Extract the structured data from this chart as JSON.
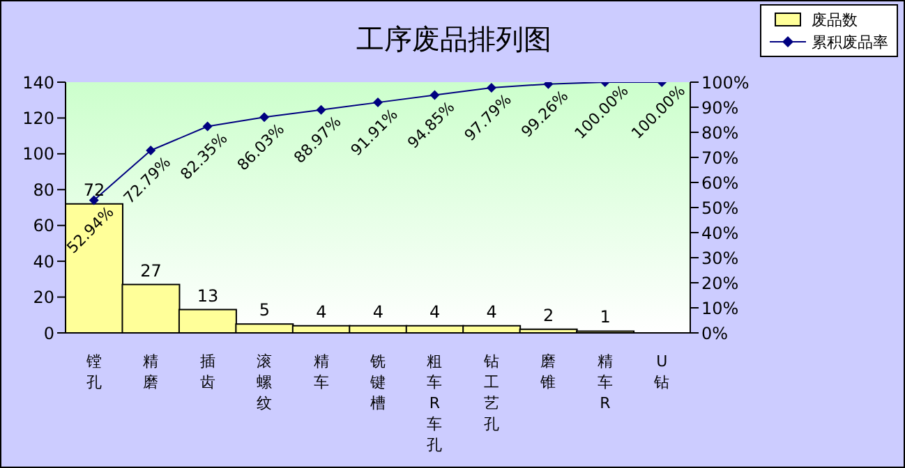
{
  "chart_data": {
    "type": "bar",
    "title": "工序废品排列图",
    "categories": [
      "镗孔",
      "精磨",
      "插齿",
      "滚螺纹",
      "精车",
      "铣键槽",
      "粗车R车孔",
      "钻工艺孔",
      "磨锥",
      "精车R",
      "U钻"
    ],
    "series": [
      {
        "name": "废品数",
        "color": "#ffff99",
        "values": [
          72,
          27,
          13,
          5,
          4,
          4,
          4,
          4,
          2,
          1,
          0
        ],
        "value_labels": [
          "72",
          "27",
          "13",
          "5",
          "4",
          "4",
          "4",
          "4",
          "2",
          "1",
          null
        ]
      },
      {
        "name": "累积废品率",
        "type": "line",
        "axis": "y2",
        "color": "#000080",
        "values": [
          52.94,
          72.79,
          82.35,
          86.03,
          88.97,
          91.91,
          94.85,
          97.79,
          99.26,
          100,
          100
        ],
        "value_labels": [
          "52.94%",
          "72.79%",
          "82.35%",
          "86.03%",
          "88.97%",
          "91.91%",
          "94.85%",
          "97.79%",
          "99.26%",
          "100.00%",
          "100.00%"
        ]
      }
    ],
    "ylim": [
      0,
      140
    ],
    "yticks": [
      0,
      20,
      40,
      60,
      80,
      100,
      120,
      140
    ],
    "y2lim": [
      0,
      100
    ],
    "y2ticks": [
      {
        "value": 0,
        "label": "0%"
      },
      {
        "value": 10,
        "label": "10%"
      },
      {
        "value": 20,
        "label": "20%"
      },
      {
        "value": 30,
        "label": "30%"
      },
      {
        "value": 40,
        "label": "40%"
      },
      {
        "value": 50,
        "label": "50%"
      },
      {
        "value": 60,
        "label": "60%"
      },
      {
        "value": 70,
        "label": "70%"
      },
      {
        "value": 80,
        "label": "80%"
      },
      {
        "value": 90,
        "label": "90%"
      },
      {
        "value": 100,
        "label": "100%"
      }
    ],
    "marker": "diamond",
    "legend": "top right",
    "grid": false
  }
}
